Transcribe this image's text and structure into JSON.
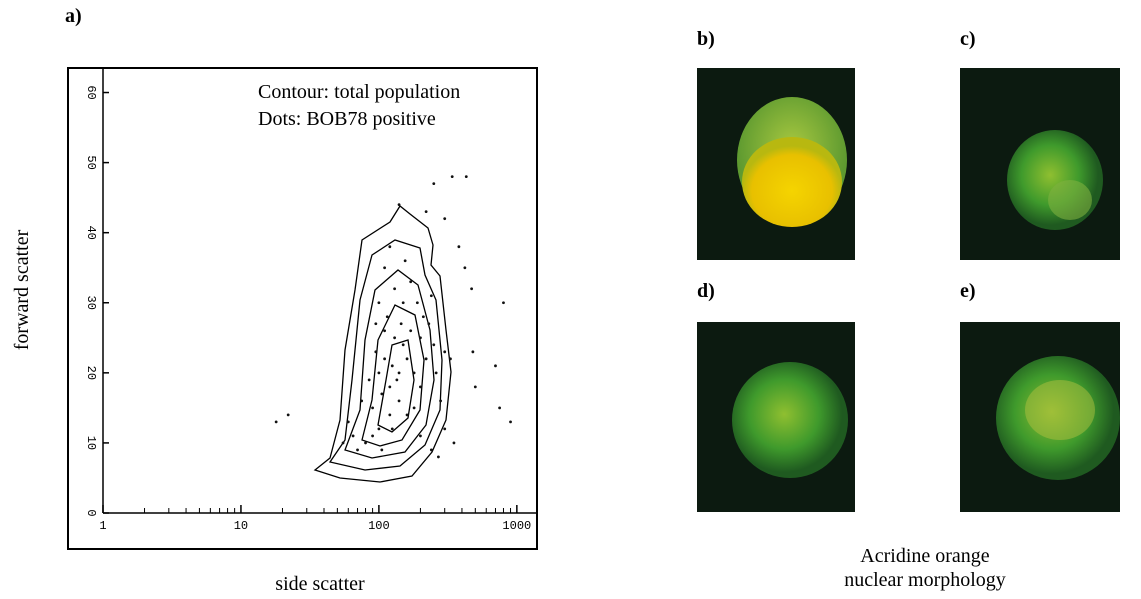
{
  "chart_data": {
    "type": "scatter",
    "annotations": [
      "Contour: total population",
      "Dots: BOB78 positive"
    ],
    "x_label": "side scatter",
    "y_label": "forward scatter",
    "xscale": "log",
    "xlim": [
      1,
      1400
    ],
    "ylim": [
      0,
      63.5
    ],
    "xticks": [
      1,
      10,
      100,
      1000
    ],
    "xminorticks": [
      2,
      3,
      4,
      5,
      6,
      7,
      8,
      9,
      20,
      30,
      40,
      50,
      60,
      70,
      80,
      90,
      200,
      300,
      400,
      500,
      600,
      700,
      800,
      900
    ],
    "yticks": [
      0,
      10,
      20,
      30,
      40,
      50,
      60
    ],
    "color": "#111111",
    "x": [
      100,
      110,
      120,
      130,
      90,
      140,
      150,
      105,
      115,
      125,
      135,
      95,
      160,
      170,
      180,
      200,
      210,
      190,
      220,
      100,
      80,
      70,
      90,
      120,
      140,
      160,
      110,
      85,
      75,
      130,
      150,
      170,
      230,
      240,
      250,
      200,
      180,
      60,
      65,
      55,
      95,
      145,
      125,
      105,
      260,
      110,
      120,
      140,
      100,
      155,
      18,
      22,
      250,
      340,
      430,
      300,
      380,
      420,
      470,
      800,
      300,
      480,
      500,
      750,
      900,
      300,
      350,
      270,
      700,
      220,
      330,
      280,
      200,
      240
    ],
    "y": [
      20,
      22,
      18,
      25,
      15,
      20,
      24,
      17,
      28,
      21,
      19,
      23,
      22,
      26,
      20,
      25,
      28,
      30,
      22,
      12,
      10,
      9,
      11,
      14,
      16,
      14,
      26,
      19,
      16,
      32,
      30,
      33,
      27,
      31,
      24,
      18,
      15,
      13,
      11,
      10,
      27,
      27,
      12,
      9,
      20,
      35,
      38,
      44,
      30,
      36,
      13,
      14,
      47,
      48,
      48,
      42,
      38,
      35,
      32,
      30,
      23,
      23,
      18,
      15,
      13,
      12,
      10,
      8,
      21,
      43,
      22,
      16,
      11,
      9
    ]
  },
  "figure": {
    "panel_labels": [
      "a)",
      "b)",
      "c)",
      "d)",
      "e)"
    ],
    "caption": [
      "Acridine orange",
      "nuclear morphology"
    ]
  }
}
